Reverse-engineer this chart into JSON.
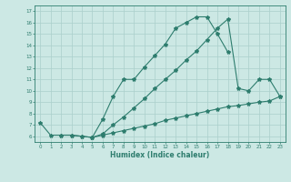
{
  "line1_x": [
    0,
    1,
    2,
    3,
    4,
    5,
    6,
    7,
    8,
    9,
    10,
    11,
    12,
    13,
    14,
    15,
    16,
    17,
    18
  ],
  "line1_y": [
    7.2,
    6.1,
    6.1,
    6.1,
    6.0,
    5.9,
    7.5,
    9.5,
    11.0,
    11.0,
    12.1,
    13.1,
    14.1,
    15.5,
    16.0,
    16.5,
    16.5,
    15.0,
    13.4
  ],
  "line2_x": [
    2,
    3,
    4,
    5,
    6,
    7,
    8,
    9,
    10,
    11,
    12,
    13,
    14,
    15,
    16,
    17,
    18,
    19,
    20,
    21,
    22,
    23
  ],
  "line2_y": [
    6.1,
    6.1,
    6.0,
    5.9,
    6.1,
    6.3,
    6.5,
    6.7,
    6.9,
    7.1,
    7.4,
    7.6,
    7.8,
    8.0,
    8.2,
    8.4,
    8.6,
    8.7,
    8.85,
    9.0,
    9.1,
    9.5
  ],
  "line3_x": [
    5,
    6,
    7,
    8,
    9,
    10,
    11,
    12,
    13,
    14,
    15,
    16,
    17,
    18,
    19,
    20,
    21,
    22,
    23
  ],
  "line3_y": [
    5.9,
    6.2,
    7.0,
    7.7,
    8.5,
    9.3,
    10.2,
    11.0,
    11.8,
    12.7,
    13.5,
    14.5,
    15.5,
    16.3,
    10.2,
    10.0,
    11.0,
    11.0,
    9.5
  ],
  "line_color": "#2e7d6e",
  "bg_color": "#cce8e4",
  "grid_color": "#aacfcb",
  "xlabel": "Humidex (Indice chaleur)",
  "xlim": [
    -0.5,
    23.5
  ],
  "ylim": [
    5.5,
    17.5
  ],
  "xticks": [
    0,
    1,
    2,
    3,
    4,
    5,
    6,
    7,
    8,
    9,
    10,
    11,
    12,
    13,
    14,
    15,
    16,
    17,
    18,
    19,
    20,
    21,
    22,
    23
  ],
  "yticks": [
    6,
    7,
    8,
    9,
    10,
    11,
    12,
    13,
    14,
    15,
    16,
    17
  ]
}
